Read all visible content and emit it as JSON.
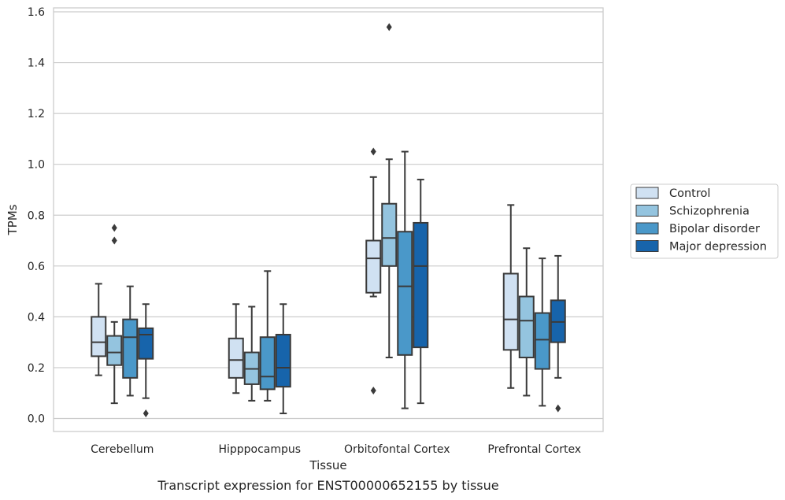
{
  "chart_data": {
    "type": "box",
    "xlabel": "Tissue",
    "ylabel": "TPMs",
    "caption": "Transcript expression for ENST00000652155 by tissue",
    "ylim": [
      -0.05,
      1.62
    ],
    "yticks": [
      "0.0",
      "0.2",
      "0.4",
      "0.6",
      "0.8",
      "1.0",
      "1.2",
      "1.4",
      "1.6"
    ],
    "grid": "horizontal",
    "legend_position": "right",
    "categories": [
      "Cerebellum",
      "Hipppocampus",
      "Orbitofontal Cortex",
      "Prefrontal Cortex"
    ],
    "series": [
      {
        "name": "Control",
        "color": "#d0e1f2",
        "boxes": [
          {
            "whislo": 0.17,
            "q1": 0.245,
            "med": 0.3,
            "q3": 0.4,
            "whishi": 0.53,
            "fliers": []
          },
          {
            "whislo": 0.1,
            "q1": 0.16,
            "med": 0.23,
            "q3": 0.315,
            "whishi": 0.45,
            "fliers": []
          },
          {
            "whislo": 0.48,
            "q1": 0.495,
            "med": 0.63,
            "q3": 0.7,
            "whishi": 0.95,
            "fliers": [
              1.05,
              0.11
            ]
          },
          {
            "whislo": 0.12,
            "q1": 0.27,
            "med": 0.39,
            "q3": 0.57,
            "whishi": 0.84,
            "fliers": []
          }
        ]
      },
      {
        "name": "Schizophrenia",
        "color": "#94c4df",
        "boxes": [
          {
            "whislo": 0.06,
            "q1": 0.21,
            "med": 0.26,
            "q3": 0.325,
            "whishi": 0.38,
            "fliers": [
              0.75,
              0.7
            ]
          },
          {
            "whislo": 0.07,
            "q1": 0.135,
            "med": 0.195,
            "q3": 0.26,
            "whishi": 0.44,
            "fliers": []
          },
          {
            "whislo": 0.24,
            "q1": 0.6,
            "med": 0.71,
            "q3": 0.845,
            "whishi": 1.02,
            "fliers": [
              1.54
            ]
          },
          {
            "whislo": 0.09,
            "q1": 0.24,
            "med": 0.385,
            "q3": 0.48,
            "whishi": 0.67,
            "fliers": []
          }
        ]
      },
      {
        "name": "Bipolar disorder",
        "color": "#4a98c9",
        "boxes": [
          {
            "whislo": 0.09,
            "q1": 0.16,
            "med": 0.32,
            "q3": 0.39,
            "whishi": 0.52,
            "fliers": []
          },
          {
            "whislo": 0.07,
            "q1": 0.115,
            "med": 0.165,
            "q3": 0.32,
            "whishi": 0.58,
            "fliers": []
          },
          {
            "whislo": 0.04,
            "q1": 0.25,
            "med": 0.52,
            "q3": 0.735,
            "whishi": 1.05,
            "fliers": []
          },
          {
            "whislo": 0.05,
            "q1": 0.195,
            "med": 0.31,
            "q3": 0.415,
            "whishi": 0.63,
            "fliers": []
          }
        ]
      },
      {
        "name": "Major depression",
        "color": "#1764ab",
        "boxes": [
          {
            "whislo": 0.08,
            "q1": 0.235,
            "med": 0.33,
            "q3": 0.355,
            "whishi": 0.45,
            "fliers": [
              0.02
            ]
          },
          {
            "whislo": 0.02,
            "q1": 0.125,
            "med": 0.2,
            "q3": 0.33,
            "whishi": 0.45,
            "fliers": []
          },
          {
            "whislo": 0.06,
            "q1": 0.28,
            "med": 0.6,
            "q3": 0.77,
            "whishi": 0.94,
            "fliers": []
          },
          {
            "whislo": 0.16,
            "q1": 0.3,
            "med": 0.38,
            "q3": 0.465,
            "whishi": 0.64,
            "fliers": [
              0.04
            ]
          }
        ]
      }
    ]
  }
}
